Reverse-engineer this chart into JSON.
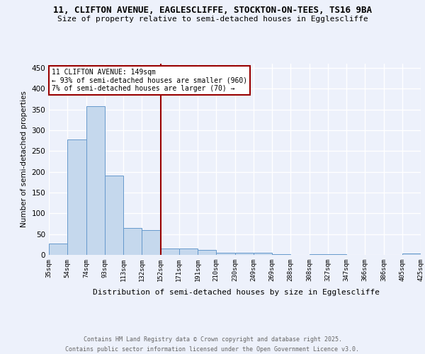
{
  "title_line1": "11, CLIFTON AVENUE, EAGLESCLIFFE, STOCKTON-ON-TEES, TS16 9BA",
  "title_line2": "Size of property relative to semi-detached houses in Egglescliffe",
  "xlabel": "Distribution of semi-detached houses by size in Egglescliffe",
  "ylabel": "Number of semi-detached properties",
  "bin_labels": [
    "35sqm",
    "54sqm",
    "74sqm",
    "93sqm",
    "113sqm",
    "132sqm",
    "152sqm",
    "171sqm",
    "191sqm",
    "210sqm",
    "230sqm",
    "249sqm",
    "269sqm",
    "288sqm",
    "308sqm",
    "327sqm",
    "347sqm",
    "366sqm",
    "386sqm",
    "405sqm",
    "425sqm"
  ],
  "values": [
    27,
    278,
    357,
    190,
    65,
    60,
    15,
    15,
    12,
    5,
    5,
    5,
    2,
    0,
    2,
    2,
    0,
    0,
    0,
    3
  ],
  "bar_fill_color": "#c5d8ed",
  "bar_edge_color": "#6699cc",
  "vline_position": 6,
  "vline_color": "#990000",
  "annotation_line1": "11 CLIFTON AVENUE: 149sqm",
  "annotation_line2": "← 93% of semi-detached houses are smaller (960)",
  "annotation_line3": "7% of semi-detached houses are larger (70) →",
  "annotation_box_facecolor": "#ffffff",
  "annotation_box_edgecolor": "#990000",
  "ylim": [
    0,
    460
  ],
  "yticks": [
    0,
    50,
    100,
    150,
    200,
    250,
    300,
    350,
    400,
    450
  ],
  "background_color": "#edf1fb",
  "grid_color": "#ffffff",
  "footer_line1": "Contains HM Land Registry data © Crown copyright and database right 2025.",
  "footer_line2": "Contains public sector information licensed under the Open Government Licence v3.0."
}
